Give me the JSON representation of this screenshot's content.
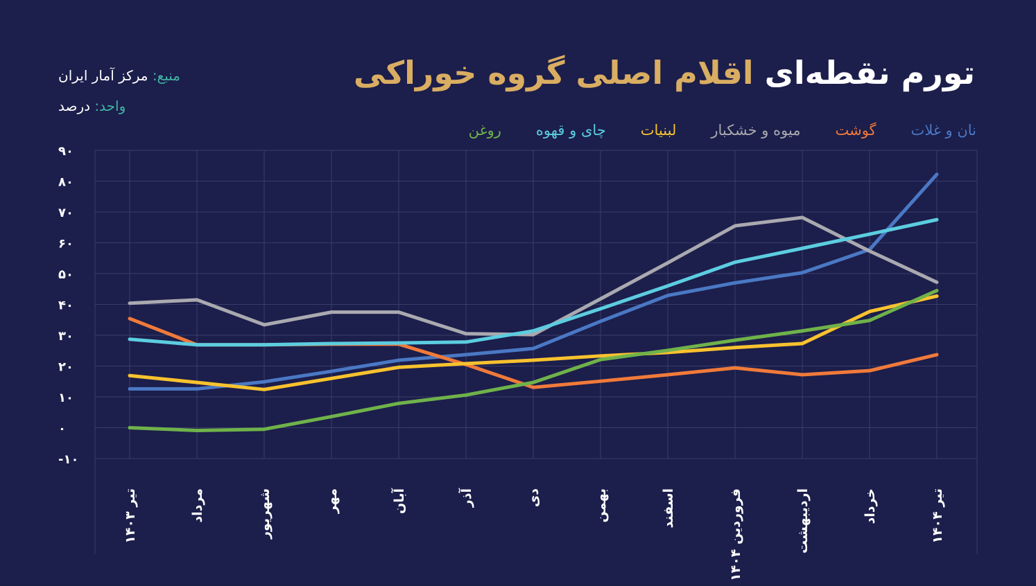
{
  "title": {
    "part1": "تورم نقطه‌ای",
    "part2": "اقلام اصلی گروه خوراکی"
  },
  "source": {
    "label": "منبع:",
    "value": "مرکز آمار ایران"
  },
  "unit": {
    "label": "واحد:",
    "value": "درصد"
  },
  "chart_data": {
    "type": "line",
    "title": "تورم نقطه‌ای اقلام اصلی گروه خوراکی",
    "ylim": [
      -10,
      90
    ],
    "yticks": [
      -10,
      0,
      10,
      20,
      30,
      40,
      50,
      60,
      70,
      80,
      90
    ],
    "ytick_labels": [
      "-۱۰",
      "۰",
      "۱۰",
      "۲۰",
      "۳۰",
      "۴۰",
      "۵۰",
      "۶۰",
      "۷۰",
      "۸۰",
      "۹۰"
    ],
    "grid": true,
    "legend_position": "top",
    "categories": [
      "تیر ۱۴۰۳",
      "مرداد",
      "شهریور",
      "مهر",
      "آبان",
      "آذر",
      "دی",
      "بهمن",
      "اسفند",
      "فروردین ۱۴۰۴",
      "اردیبهشت",
      "خرداد",
      "تیر ۱۴۰۴"
    ],
    "series": [
      {
        "name": "نان و غلات",
        "color": "#4a78c4",
        "values": [
          12.6,
          12.6,
          14.9,
          18.3,
          21.9,
          23.7,
          25.7,
          34.5,
          42.9,
          47.0,
          50.3,
          57.8,
          82.2
        ]
      },
      {
        "name": "گوشت",
        "color": "#f07a3a",
        "values": [
          35.4,
          26.9,
          26.9,
          27.1,
          27.1,
          20.5,
          13.1,
          15.1,
          17.2,
          19.4,
          17.2,
          18.5,
          23.7
        ]
      },
      {
        "name": "میوه و خشکبار",
        "color": "#a9a9b0",
        "values": [
          40.4,
          41.5,
          33.4,
          37.5,
          37.5,
          30.5,
          30.2,
          41.8,
          53.5,
          65.5,
          68.2,
          57.3,
          47.2
        ]
      },
      {
        "name": "لبنیات",
        "color": "#f9c22e",
        "values": [
          16.9,
          14.7,
          12.4,
          16.0,
          19.6,
          20.8,
          21.9,
          23.3,
          24.4,
          26.0,
          27.3,
          37.7,
          42.7
        ]
      },
      {
        "name": "چای و قهوه",
        "color": "#5ccde0",
        "values": [
          28.7,
          26.9,
          26.9,
          27.3,
          27.5,
          27.8,
          31.4,
          38.6,
          46.0,
          53.7,
          58.2,
          62.8,
          67.5
        ]
      },
      {
        "name": "روغن",
        "color": "#6fb24a",
        "values": [
          0.0,
          -0.9,
          -0.5,
          3.6,
          7.9,
          10.6,
          14.7,
          22.1,
          25.1,
          28.4,
          31.4,
          34.8,
          44.5
        ]
      }
    ]
  }
}
